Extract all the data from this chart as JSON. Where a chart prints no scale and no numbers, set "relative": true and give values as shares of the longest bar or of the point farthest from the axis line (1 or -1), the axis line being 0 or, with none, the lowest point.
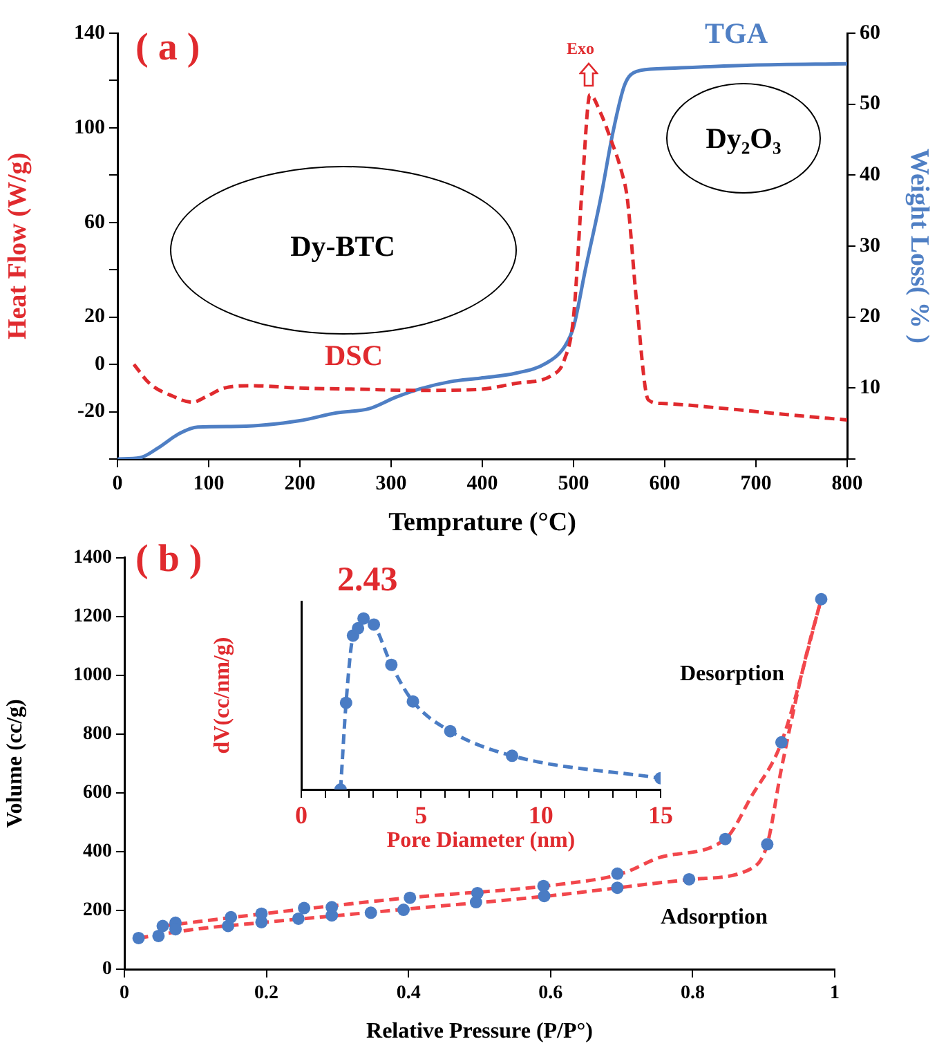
{
  "chart_data": [
    {
      "type": "line",
      "xlabel": "Temprature (°C)",
      "ylabel": "Heat Flow (W/g)",
      "y2label": "Weight Loss( % )",
      "xlim": [
        0,
        800
      ],
      "xticks": [
        0,
        100,
        200,
        300,
        400,
        500,
        600,
        700,
        800
      ],
      "ylim": [
        -40,
        140
      ],
      "yticks": [
        {
          "value": -40,
          "label": null
        },
        -20,
        0,
        20,
        {
          "value": 40,
          "label": null
        },
        60,
        {
          "value": 80,
          "label": null
        },
        100,
        {
          "value": 120,
          "label": null
        },
        140
      ],
      "y2lim": [
        0,
        60
      ],
      "y2ticks": [
        {
          "value": 0,
          "label": null
        },
        10,
        20,
        30,
        40,
        50,
        60
      ],
      "grid": false,
      "legend": false,
      "annotations": [
        "( a )",
        "Exo",
        "Dy-BTC",
        "Dy₂O₃"
      ],
      "series": [
        {
          "name": "DSC",
          "color": "#e02a2e",
          "line_style": "dashed",
          "x": [
            18,
            35,
            61,
            82,
            98,
            117,
            147,
            200,
            266,
            332,
            398,
            437,
            477,
            490,
            500,
            510,
            518,
            530,
            540,
            553,
            559,
            569,
            582,
            596,
            662,
            728,
            800
          ],
          "values": [
            0,
            -8,
            -13.5,
            -16,
            -13.5,
            -10,
            -9,
            -10,
            -10.5,
            -11,
            -10.5,
            -8,
            -4.5,
            2,
            20,
            78,
            114,
            106,
            96,
            81,
            70,
            27,
            -15,
            -16.5,
            -18.5,
            -21,
            -23.5
          ]
        },
        {
          "name": "TGA",
          "color": "#4f7fc4",
          "axis": "y2",
          "line_style": "solid",
          "x": [
            0,
            25,
            45,
            68,
            88,
            134,
            200,
            240,
            276,
            305,
            332,
            365,
            398,
            437,
            470,
            490,
            500,
            513,
            530,
            543,
            556,
            569,
            596,
            695,
            800
          ],
          "values": [
            0,
            0.2,
            1.6,
            3.6,
            4.5,
            4.6,
            5.4,
            6.5,
            7.1,
            8.7,
            9.9,
            10.9,
            11.4,
            12.1,
            13.5,
            15.8,
            18.6,
            26.7,
            36.9,
            45.9,
            52.7,
            54.6,
            55,
            55.5,
            55.7
          ]
        }
      ]
    },
    {
      "type": "scatter",
      "xlabel": "Relative Pressure (P/P°)",
      "ylabel": "Volume (cc/g)",
      "xlim": [
        0,
        1
      ],
      "xticks": [
        0,
        0.2,
        0.4,
        0.6,
        0.8,
        1
      ],
      "ylim": [
        0,
        1400
      ],
      "yticks": [
        0,
        200,
        400,
        600,
        800,
        1000,
        1200,
        1400
      ],
      "grid": false,
      "legend": false,
      "annotations": [
        "( b )",
        "Desorption",
        "Adsorption"
      ],
      "series": [
        {
          "color": "#f2474c",
          "type": "line",
          "line_style": "dashed",
          "marker": "none",
          "x": [
            0.054,
            0.2,
            0.4,
            0.6,
            0.7,
            0.755,
            0.846,
            0.883,
            0.925,
            0.981
          ],
          "values": [
            147,
            190,
            243,
            285,
            325,
            381,
            443,
            589,
            772,
            1259
          ]
        },
        {
          "color": "#f2474c",
          "type": "line",
          "line_style": "dashed",
          "marker": "none",
          "x": [
            0.02,
            0.1,
            0.2,
            0.4,
            0.6,
            0.8,
            0.883,
            0.905,
            0.925,
            0.959,
            0.981
          ],
          "values": [
            106,
            136,
            160,
            205,
            250,
            306,
            343,
            425,
            683,
            1060,
            1259
          ]
        },
        {
          "color": "#4a7cc4",
          "type": "scatter",
          "marker": "circle",
          "x": [
            0.02,
            0.048,
            0.054,
            0.072,
            0.072,
            0.146,
            0.15,
            0.193,
            0.193,
            0.245,
            0.253,
            0.292,
            0.292,
            0.347,
            0.393,
            0.402,
            0.495,
            0.497,
            0.591,
            0.59,
            0.694,
            0.694,
            0.795,
            0.846,
            0.905,
            0.925,
            0.981
          ],
          "values": [
            106,
            113,
            147,
            158,
            136,
            147,
            177,
            160,
            189,
            172,
            208,
            183,
            211,
            192,
            202,
            243,
            228,
            259,
            249,
            283,
            277,
            325,
            306,
            443,
            425,
            772,
            1259
          ]
        }
      ]
    },
    {
      "type": "line",
      "xlabel": "Pore Diameter (nm)",
      "ylabel": "dV(cc/nm/g)",
      "xlim": [
        0,
        15
      ],
      "xticks": [
        0,
        {
          "value": 1,
          "label": null
        },
        {
          "value": 2,
          "label": null
        },
        {
          "value": 3,
          "label": null
        },
        {
          "value": 4,
          "label": null
        },
        5,
        {
          "value": 6,
          "label": null
        },
        {
          "value": 7,
          "label": null
        },
        {
          "value": 8,
          "label": null
        },
        {
          "value": 9,
          "label": null
        },
        10,
        {
          "value": 11,
          "label": null
        },
        {
          "value": 12,
          "label": null
        },
        {
          "value": 13,
          "label": null
        },
        {
          "value": 14,
          "label": null
        },
        15
      ],
      "relative": true,
      "grid": false,
      "legend": false,
      "marker": "circle",
      "line_style": "dashed",
      "annotations": [
        "2.43"
      ],
      "series": [
        {
          "color": "#4a7cc4",
          "x": [
            1.64,
            1.87,
            2.16,
            2.37,
            2.6,
            3.03,
            3.76,
            4.66,
            6.22,
            8.8,
            15
          ],
          "values": [
            0,
            0.507,
            0.9,
            0.943,
            1,
            0.965,
            0.729,
            0.515,
            0.341,
            0.197,
            0.066
          ]
        }
      ]
    }
  ]
}
